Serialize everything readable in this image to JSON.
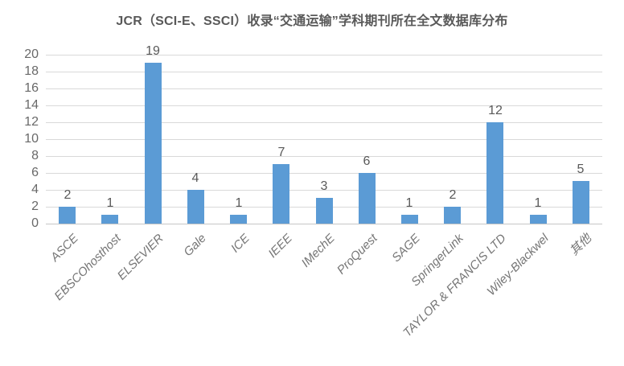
{
  "colors": {
    "background": "#FFFFFF",
    "bar": "#5B9BD5",
    "gridline": "#D9D9D9",
    "axis_line": "#C6C6C6",
    "title_text": "#595959",
    "tick_text": "#696969",
    "x_label_text": "#757575",
    "data_label_text": "#595959"
  },
  "chart_data": {
    "type": "bar",
    "title": "JCR（SCI-E、SSCI）收录“交通运输”学科期刊所在全文数据库分布",
    "categories": [
      "ASCE",
      "EBSCOhosthost",
      "ELSEVIER",
      "Gale",
      "ICE",
      "IEEE",
      "IMechE",
      "ProQuest",
      "SAGE",
      "SpringerLink",
      "TAYLOR & FRANCIS LTD",
      "Wiley-Blackwel",
      "其他"
    ],
    "values": [
      2,
      1,
      19,
      4,
      1,
      7,
      3,
      6,
      1,
      2,
      12,
      1,
      5
    ],
    "xlabel": "",
    "ylabel": "",
    "ylim": [
      0,
      20
    ],
    "yticks": [
      0,
      2,
      4,
      6,
      8,
      10,
      12,
      14,
      16,
      18,
      20
    ],
    "grid": true,
    "legend": false,
    "data_labels": true,
    "x_label_rotation": -45,
    "x_label_style": "italic"
  }
}
